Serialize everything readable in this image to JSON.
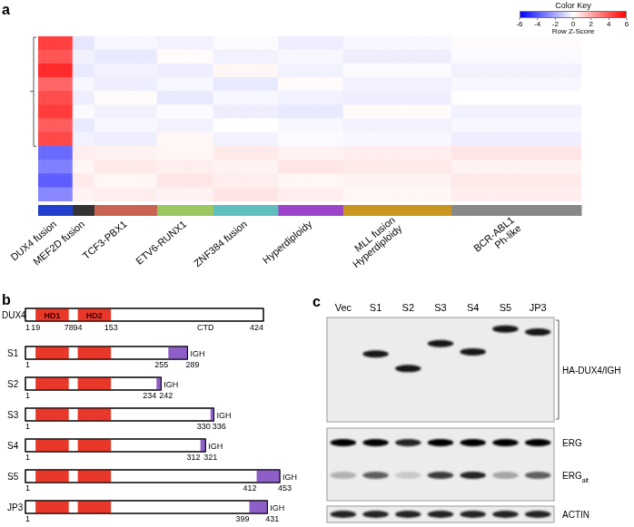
{
  "chart_data": {
    "type": "heatmap",
    "panel_label": "a",
    "tick_labels": false,
    "color_key": {
      "title": "Color Key",
      "label": "Row Z-Score",
      "range": [
        -6,
        6
      ],
      "ticks": [
        -6,
        -4,
        -2,
        0,
        2,
        4,
        6
      ],
      "colors": [
        "#0000ff",
        "#ffffff",
        "#ff0000"
      ]
    },
    "groups": [
      {
        "name": "DUX4 fusion",
        "color": "#1f3fcc",
        "samples": 16
      },
      {
        "name": "MEF2D fusion",
        "color": "#333333",
        "samples": 10
      },
      {
        "name": "TCF3-PBX1",
        "color": "#c8644f",
        "samples": 29
      },
      {
        "name": "ETV6-RUNX1",
        "color": "#9ac760",
        "samples": 26
      },
      {
        "name": "ZNF384 fusion",
        "color": "#5fbfbf",
        "samples": 30
      },
      {
        "name": "Hyperdiploidy",
        "color": "#9b44c9",
        "samples": 30
      },
      {
        "name": "MLL fusion\nHyperdiploidy",
        "color": "#c8961e",
        "samples": 50
      },
      {
        "name": "BCR-ABL1\nPh-like",
        "color": "#888888",
        "samples": 60
      }
    ],
    "cells": [
      [
        4.5,
        -0.6,
        -0.2,
        -0.3,
        -0.1,
        -0.4,
        -0.2,
        0.1
      ],
      [
        4.0,
        -0.3,
        -0.5,
        0.1,
        -0.3,
        -0.2,
        -0.4,
        -0.1
      ],
      [
        5.0,
        -0.5,
        -0.3,
        -0.4,
        0.2,
        -0.3,
        -0.1,
        -0.3
      ],
      [
        3.6,
        -0.2,
        -0.4,
        -0.2,
        -0.5,
        0.1,
        -0.3,
        -0.2
      ],
      [
        4.2,
        -0.4,
        0.1,
        -0.5,
        -0.2,
        -0.3,
        -0.4,
        0.0
      ],
      [
        4.6,
        -0.1,
        -0.3,
        -0.1,
        -0.4,
        -0.5,
        0.1,
        -0.3
      ],
      [
        3.8,
        -0.5,
        -0.2,
        -0.3,
        0.0,
        -0.2,
        -0.3,
        -0.2
      ],
      [
        4.3,
        -0.3,
        -0.4,
        0.2,
        -0.3,
        -0.1,
        -0.2,
        -0.4
      ],
      [
        -3.5,
        0.4,
        0.3,
        0.2,
        0.5,
        0.3,
        0.4,
        0.6
      ],
      [
        -3.0,
        0.2,
        0.5,
        0.4,
        0.3,
        0.6,
        0.5,
        0.3
      ],
      [
        -3.8,
        0.5,
        0.2,
        0.6,
        0.4,
        0.2,
        0.3,
        0.5
      ],
      [
        -2.8,
        0.3,
        0.4,
        0.3,
        0.6,
        0.4,
        0.2,
        0.4
      ]
    ]
  },
  "panel_b": {
    "panel_label": "b",
    "reference": {
      "name": "DUX4",
      "length": 424,
      "domains": [
        {
          "name": "HD1",
          "start": 19,
          "end": 78
        },
        {
          "name": "HD2",
          "start": 94,
          "end": 153
        }
      ],
      "tail_label": "CTD",
      "numbers": [
        1,
        19,
        78,
        94,
        153,
        424
      ]
    },
    "fusions": [
      {
        "name": "S1",
        "start": 1,
        "dux4_end": 255,
        "end": 289,
        "partner": "IGH"
      },
      {
        "name": "S2",
        "start": 1,
        "dux4_end": 234,
        "end": 242,
        "partner": "IGH"
      },
      {
        "name": "S3",
        "start": 1,
        "dux4_end": 330,
        "end": 336,
        "partner": "IGH"
      },
      {
        "name": "S4",
        "start": 1,
        "dux4_end": 312,
        "end": 321,
        "partner": "IGH"
      },
      {
        "name": "S5",
        "start": 1,
        "dux4_end": 412,
        "end": 453,
        "partner": "IGH"
      },
      {
        "name": "JP3",
        "start": 1,
        "dux4_end": 399,
        "end": 431,
        "partner": "IGH"
      }
    ]
  },
  "panel_c": {
    "panel_label": "c",
    "lanes": [
      "Vec",
      "S1",
      "S2",
      "S3",
      "S4",
      "S5",
      "JP3"
    ],
    "blots": [
      {
        "bracket": true,
        "rows": [
          {
            "label": "HA-DUX4/IGH",
            "migration": [
              null,
              0.35,
              0.49,
              0.25,
              0.33,
              0.11,
              0.14
            ],
            "intensity": [
              0,
              0.9,
              0.9,
              0.9,
              0.9,
              0.9,
              0.9
            ]
          }
        ]
      },
      {
        "bracket": false,
        "rows": [
          {
            "label": "ERG",
            "migration": 0.2,
            "intensity": [
              1,
              1,
              0.85,
              1,
              1,
              1,
              1
            ]
          },
          {
            "label": "ERG",
            "label_subscript": "alt",
            "migration": 0.65,
            "intensity": [
              0.25,
              0.6,
              0.15,
              0.75,
              0.85,
              0.3,
              0.6
            ]
          }
        ]
      },
      {
        "bracket": false,
        "rows": [
          {
            "label": "ACTIN",
            "migration": 0.5,
            "intensity": [
              0.85,
              0.85,
              0.85,
              0.85,
              0.85,
              0.85,
              0.85
            ]
          }
        ]
      }
    ]
  }
}
